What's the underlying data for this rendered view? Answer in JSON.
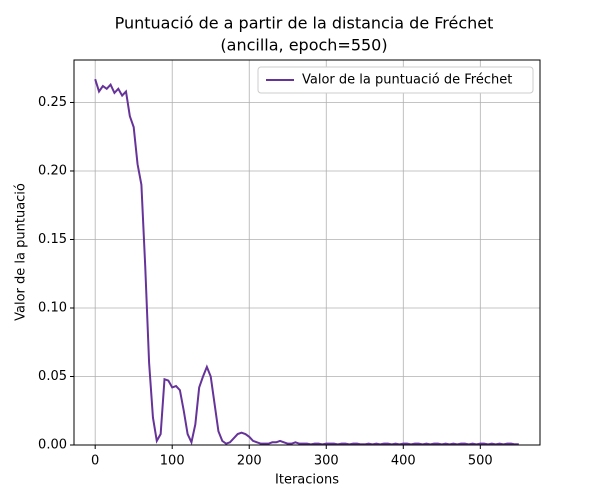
{
  "chart_data": {
    "type": "line",
    "title": "Puntuació de a partir de la distancia de Fréchet",
    "subtitle": "(ancilla, epoch=550)",
    "x_label": "Iteracions",
    "y_label": "Valor de la puntuació",
    "x": [
      0,
      5,
      10,
      15,
      20,
      25,
      30,
      35,
      40,
      45,
      50,
      55,
      60,
      65,
      70,
      75,
      80,
      85,
      90,
      95,
      100,
      105,
      110,
      115,
      120,
      125,
      130,
      135,
      140,
      145,
      150,
      155,
      160,
      165,
      170,
      175,
      180,
      185,
      190,
      195,
      200,
      205,
      210,
      215,
      220,
      225,
      230,
      235,
      240,
      245,
      250,
      255,
      260,
      265,
      270,
      275,
      280,
      285,
      290,
      295,
      300,
      305,
      310,
      315,
      320,
      325,
      330,
      335,
      340,
      345,
      350,
      355,
      360,
      365,
      370,
      375,
      380,
      385,
      390,
      395,
      400,
      405,
      410,
      415,
      420,
      425,
      430,
      435,
      440,
      445,
      450,
      455,
      460,
      465,
      470,
      475,
      480,
      485,
      490,
      495,
      500,
      505,
      510,
      515,
      520,
      525,
      530,
      535,
      540,
      545,
      550
    ],
    "series": [
      {
        "name": "Valor de la puntuació de Fréchet",
        "color": "#663399",
        "values": [
          0.267,
          0.258,
          0.262,
          0.26,
          0.263,
          0.257,
          0.26,
          0.255,
          0.258,
          0.24,
          0.232,
          0.205,
          0.19,
          0.13,
          0.06,
          0.02,
          0.003,
          0.008,
          0.048,
          0.047,
          0.042,
          0.043,
          0.04,
          0.025,
          0.008,
          0.002,
          0.015,
          0.042,
          0.05,
          0.057,
          0.05,
          0.03,
          0.01,
          0.003,
          0.001,
          0.002,
          0.005,
          0.008,
          0.009,
          0.008,
          0.006,
          0.003,
          0.002,
          0.001,
          0.001,
          0.001,
          0.002,
          0.002,
          0.003,
          0.002,
          0.001,
          0.001,
          0.002,
          0.001,
          0.001,
          0.001,
          0.0005,
          0.001,
          0.001,
          0.0005,
          0.001,
          0.001,
          0.001,
          0.0005,
          0.001,
          0.001,
          0.0005,
          0.001,
          0.001,
          0.0005,
          0.0005,
          0.001,
          0.0005,
          0.001,
          0.0005,
          0.001,
          0.001,
          0.0005,
          0.001,
          0.0005,
          0.001,
          0.001,
          0.0005,
          0.001,
          0.001,
          0.0005,
          0.001,
          0.0005,
          0.001,
          0.001,
          0.0005,
          0.001,
          0.0005,
          0.001,
          0.0005,
          0.001,
          0.001,
          0.0005,
          0.001,
          0.0005,
          0.001,
          0.001,
          0.0005,
          0.001,
          0.0005,
          0.001,
          0.0005,
          0.001,
          0.001,
          0.0005,
          0.0005
        ]
      }
    ],
    "xlim": [
      -27.5,
      577.5
    ],
    "ylim": [
      0,
      0.281
    ],
    "xticks": [
      0,
      100,
      200,
      300,
      400,
      500
    ],
    "yticks": [
      {
        "value": 0,
        "label": "0.00"
      },
      {
        "value": 0.05,
        "label": "0.05"
      },
      {
        "value": 0.1,
        "label": "0.10"
      },
      {
        "value": 0.15,
        "label": "0.15"
      },
      {
        "value": 0.2,
        "label": "0.20"
      },
      {
        "value": 0.25,
        "label": "0.25"
      }
    ],
    "grid": true,
    "legend": "upper right"
  }
}
